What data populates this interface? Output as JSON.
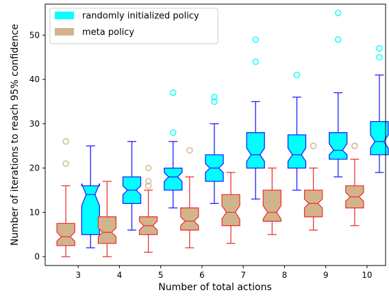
{
  "chart_data": {
    "type": "boxplot",
    "title": "",
    "xlabel": "Number of total actions",
    "ylabel": "Number of iterations to reach 95% confidence",
    "categories": [
      "3",
      "4",
      "5",
      "6",
      "7",
      "8",
      "9",
      "10"
    ],
    "xlim": [
      2.5,
      10.75
    ],
    "ylim": [
      -2,
      57
    ],
    "yticks": [
      0,
      10,
      20,
      30,
      40,
      50
    ],
    "notched": true,
    "grid": false,
    "legend_position": "top-left",
    "series": [
      {
        "name": "randomly initialized policy",
        "fill_color": "#00ffff",
        "edge_color": "#1f1fff",
        "flier_color": "#00ffff",
        "positions": [
          3.6,
          4.6,
          5.6,
          6.6,
          7.6,
          8.6,
          9.6,
          10.6
        ],
        "boxes": [
          {
            "whislo": 2,
            "q1": 5,
            "med": 14,
            "q3": 16,
            "whishi": 25,
            "notch_lo": 11.5,
            "notch_hi": 16.5,
            "fliers": []
          },
          {
            "whislo": 6,
            "q1": 12,
            "med": 15,
            "q3": 18,
            "whishi": 26,
            "notch_lo": 14,
            "notch_hi": 16,
            "fliers": []
          },
          {
            "whislo": 11,
            "q1": 15,
            "med": 18,
            "q3": 20,
            "whishi": 26,
            "notch_lo": 17,
            "notch_hi": 19,
            "fliers": [
              28,
              37
            ]
          },
          {
            "whislo": 12,
            "q1": 17,
            "med": 20,
            "q3": 23,
            "whishi": 30,
            "notch_lo": 19,
            "notch_hi": 21,
            "fliers": [
              35,
              36
            ]
          },
          {
            "whislo": 13,
            "q1": 20,
            "med": 23,
            "q3": 28,
            "whishi": 35,
            "notch_lo": 21.5,
            "notch_hi": 24.5,
            "fliers": [
              44,
              49
            ]
          },
          {
            "whislo": 15,
            "q1": 20,
            "med": 23,
            "q3": 27.5,
            "whishi": 36,
            "notch_lo": 21.5,
            "notch_hi": 24.5,
            "fliers": [
              41
            ]
          },
          {
            "whislo": 18,
            "q1": 22,
            "med": 24,
            "q3": 28,
            "whishi": 37,
            "notch_lo": 23,
            "notch_hi": 25.5,
            "fliers": [
              49,
              55
            ]
          },
          {
            "whislo": 19,
            "q1": 23,
            "med": 26,
            "q3": 30.5,
            "whishi": 41,
            "notch_lo": 24.5,
            "notch_hi": 27.5,
            "fliers": [
              45,
              47
            ]
          }
        ]
      },
      {
        "name": "meta policy",
        "fill_color": "#d2b48c",
        "edge_color": "#ee3333",
        "flier_color": "#d2b48c",
        "positions": [
          3.0,
          4.0,
          5.0,
          6.0,
          7.0,
          8.0,
          9.0,
          10.0
        ],
        "boxes": [
          {
            "whislo": 0,
            "q1": 2.5,
            "med": 4.5,
            "q3": 7.5,
            "whishi": 16,
            "notch_lo": 3.5,
            "notch_hi": 5.5,
            "fliers": [
              21,
              26
            ]
          },
          {
            "whislo": 0,
            "q1": 3,
            "med": 5.5,
            "q3": 9,
            "whishi": 17,
            "notch_lo": 4.5,
            "notch_hi": 6.5,
            "fliers": []
          },
          {
            "whislo": 1,
            "q1": 5,
            "med": 7,
            "q3": 9,
            "whishi": 15,
            "notch_lo": 6,
            "notch_hi": 8,
            "fliers": [
              16,
              17,
              20
            ]
          },
          {
            "whislo": 2,
            "q1": 6,
            "med": 8,
            "q3": 11,
            "whishi": 18,
            "notch_lo": 7,
            "notch_hi": 9,
            "fliers": [
              24
            ]
          },
          {
            "whislo": 3,
            "q1": 7,
            "med": 10,
            "q3": 14,
            "whishi": 19,
            "notch_lo": 8.5,
            "notch_hi": 11.5,
            "fliers": []
          },
          {
            "whislo": 5,
            "q1": 8,
            "med": 10,
            "q3": 15,
            "whishi": 20,
            "notch_lo": 8.5,
            "notch_hi": 11.5,
            "fliers": []
          },
          {
            "whislo": 6,
            "q1": 9,
            "med": 12,
            "q3": 15,
            "whishi": 20,
            "notch_lo": 11,
            "notch_hi": 13,
            "fliers": [
              25
            ]
          },
          {
            "whislo": 7,
            "q1": 11,
            "med": 13.5,
            "q3": 16,
            "whishi": 22,
            "notch_lo": 12.5,
            "notch_hi": 14.5,
            "fliers": [
              25,
              25
            ]
          }
        ]
      }
    ]
  }
}
